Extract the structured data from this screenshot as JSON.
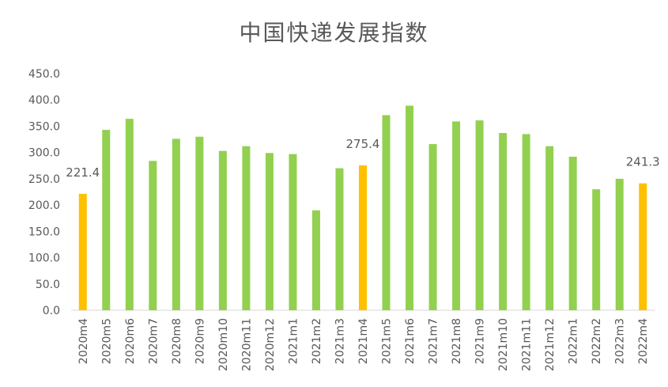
{
  "chart_data": {
    "type": "bar",
    "title": "中国快递发展指数",
    "xlabel": "",
    "ylabel": "",
    "ylim": [
      0,
      450
    ],
    "y_ticks": [
      "0.0",
      "50.0",
      "100.0",
      "150.0",
      "200.0",
      "250.0",
      "300.0",
      "350.0",
      "400.0",
      "450.0"
    ],
    "grid": false,
    "colors": {
      "default": "#92D050",
      "highlight": "#FFC000"
    },
    "categories": [
      "2020m4",
      "2020m5",
      "2020m6",
      "2020m7",
      "2020m8",
      "2020m9",
      "2020m10",
      "2020m11",
      "2020m12",
      "2021m1",
      "2021m2",
      "2021m3",
      "2021m4",
      "2021m5",
      "2021m6",
      "2021m7",
      "2021m8",
      "2021m9",
      "2021m10",
      "2021m11",
      "2021m12",
      "2022m1",
      "2022m2",
      "2022m3",
      "2022m4"
    ],
    "values": [
      221.4,
      343,
      364,
      284,
      326,
      330,
      303,
      312,
      299,
      297,
      190,
      270,
      275.4,
      371,
      389,
      316,
      359,
      361,
      337,
      335,
      312,
      292,
      230,
      250,
      241.3
    ],
    "highlighted_categories": [
      "2020m4",
      "2021m4",
      "2022m4"
    ],
    "data_labels": [
      {
        "category": "2020m4",
        "text": "221.4"
      },
      {
        "category": "2021m4",
        "text": "275.4"
      },
      {
        "category": "2022m4",
        "text": "241.3"
      }
    ]
  }
}
